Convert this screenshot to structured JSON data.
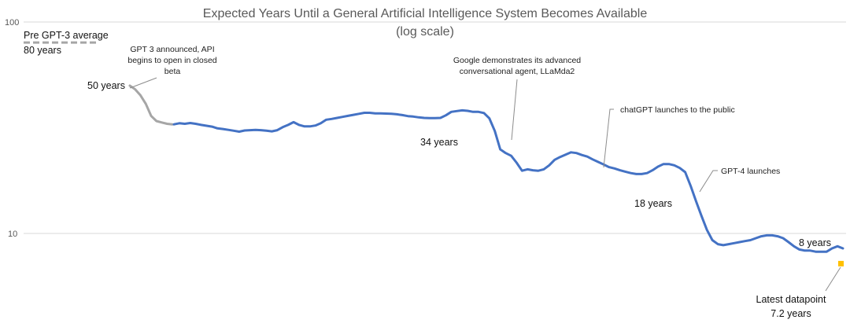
{
  "chart_data": {
    "type": "line",
    "title": "Expected Years Until a General Artificial Intelligence System Becomes Available",
    "subtitle": "(log scale)",
    "yscale": "log",
    "ylim": [
      5.9,
      100
    ],
    "y_ticks": [
      {
        "value": 100,
        "label": "100"
      },
      {
        "value": 10,
        "label": "10"
      }
    ],
    "grid": "horizontal",
    "legend": "none",
    "colors": {
      "early": "#a6a6a6",
      "main": "#4472c4",
      "latest": "#ffc000",
      "baseline": "#a6a6a6"
    },
    "baseline": {
      "value": 80,
      "label_line1": "Pre GPT-3 average",
      "label_line2": "80 years"
    },
    "series": [
      {
        "values": [
          50,
          48,
          45,
          41,
          36,
          34,
          33.5,
          33,
          32.8
        ]
      },
      {
        "values": [
          32.8,
          33.2,
          33.0,
          33.3,
          33.0,
          32.6,
          32.3,
          32.0,
          31.4,
          31.2,
          30.9,
          30.6,
          30.3,
          30.7,
          30.8,
          30.9,
          30.8,
          30.6,
          30.4,
          30.8,
          31.8,
          32.6,
          33.6,
          32.6,
          32.1,
          32.1,
          32.4,
          33.2,
          34.5,
          34.8,
          35.2,
          35.6,
          36.0,
          36.4,
          36.8,
          37.2,
          37.2,
          37.0,
          37.0,
          36.9,
          36.8,
          36.6,
          36.3,
          35.9,
          35.7,
          35.4,
          35.2,
          35.1,
          35.1,
          35.2,
          36.2,
          37.6,
          37.9,
          38.2,
          38.0,
          37.6,
          37.6,
          37.1,
          35.0,
          30.5,
          25.0,
          24.0,
          23.3,
          21.6,
          19.8,
          20.1,
          19.9,
          19.8,
          20.1,
          21.0,
          22.3,
          23.0,
          23.6,
          24.2,
          24.0,
          23.5,
          23.1,
          22.4,
          21.8,
          21.2,
          20.6,
          20.3,
          19.9,
          19.6,
          19.3,
          19.1,
          19.1,
          19.3,
          19.9,
          20.7,
          21.3,
          21.3,
          21.0,
          20.4,
          19.5,
          16.8,
          14.2,
          12.1,
          10.4,
          9.3,
          8.9,
          8.8,
          8.9,
          9.0,
          9.1,
          9.2,
          9.3,
          9.5,
          9.7,
          9.8,
          9.8,
          9.7,
          9.5,
          9.1,
          8.7,
          8.4,
          8.3,
          8.3,
          8.2,
          8.2,
          8.2,
          8.5,
          8.7,
          8.5
        ]
      }
    ],
    "latest_datapoint": {
      "value": 7.2,
      "label_line1": "Latest datapoint",
      "label_line2": "7.2 years"
    },
    "value_labels": [
      "50 years",
      "34 years",
      "18 years",
      "8 years"
    ],
    "annotations": {
      "gpt3": [
        "GPT 3 announced, API",
        "begins to open in closed",
        "beta"
      ],
      "google": [
        "Google demonstrates its advanced",
        "conversational agent, LLaMda2"
      ],
      "chatgpt": [
        "chatGPT launches to the public"
      ],
      "gpt4": [
        "GPT-4 launches"
      ]
    }
  }
}
